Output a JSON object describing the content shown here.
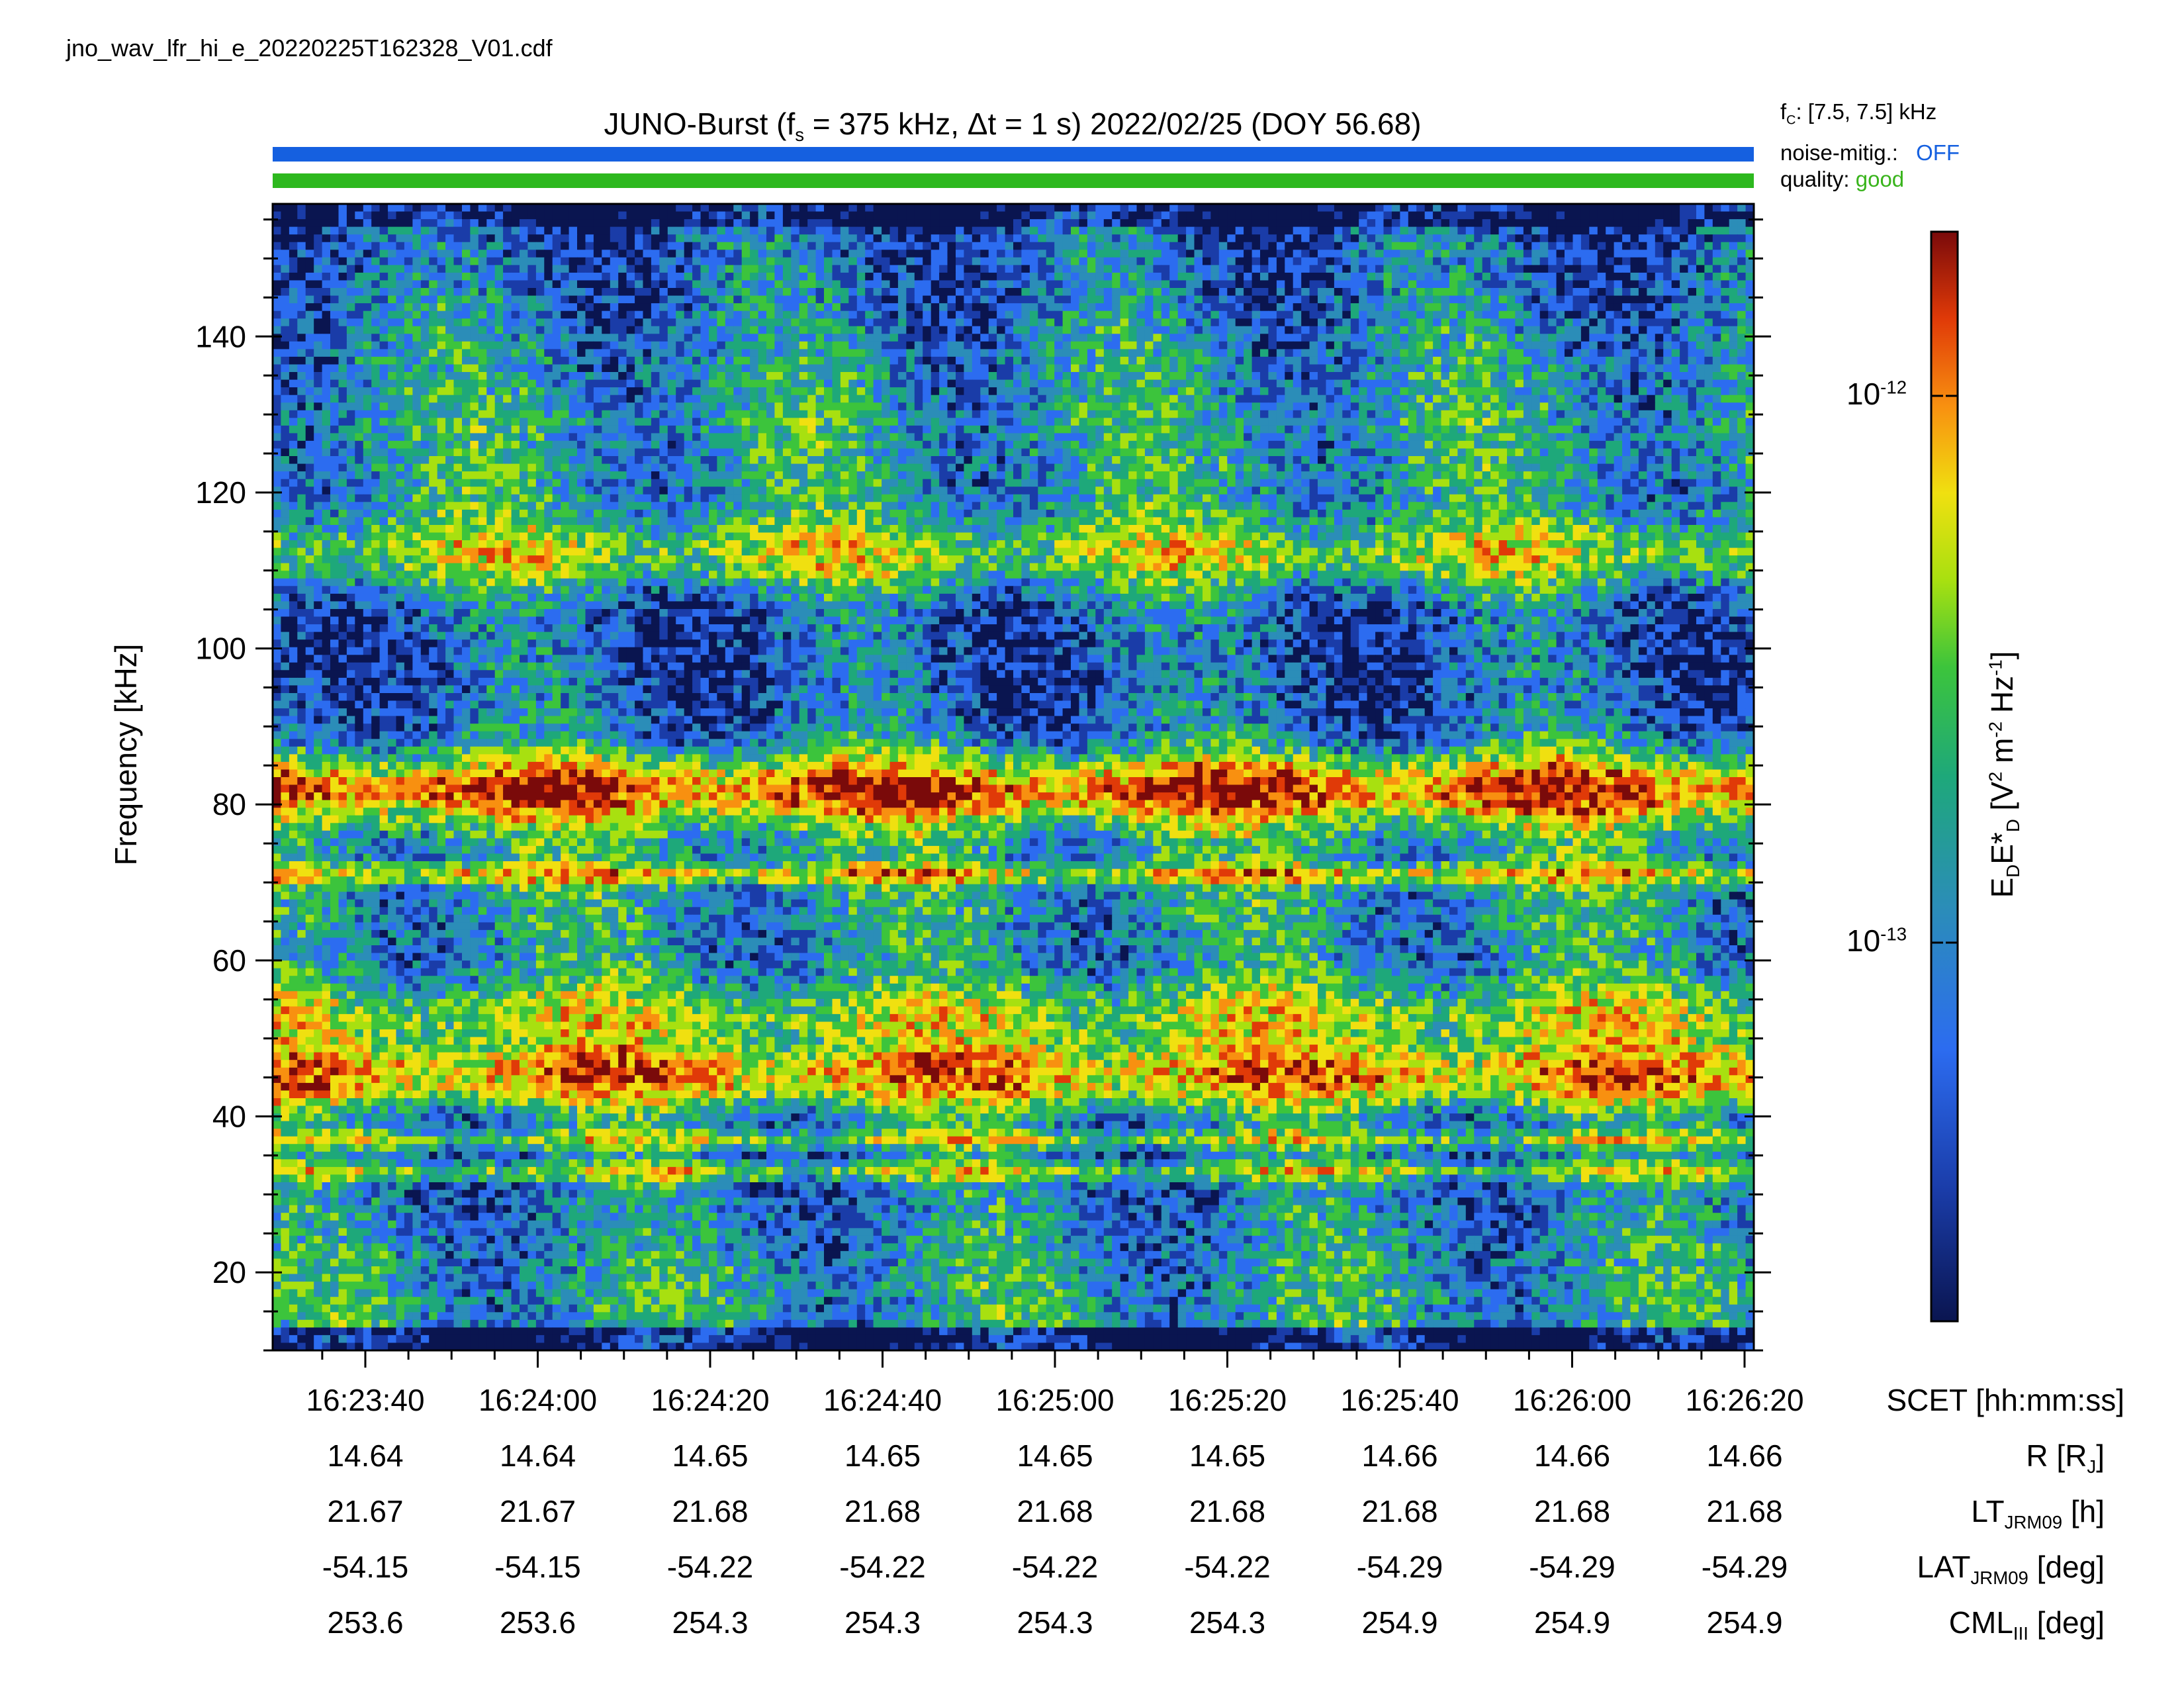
{
  "filename": "jno_wav_lfr_hi_e_20220225T162328_V01.cdf",
  "title": {
    "prefix": "JUNO-Burst (f",
    "sub": "s",
    "rest": " = 375 kHz, Δt = 1 s)  2022/02/25 (DOY 56.68)"
  },
  "side_info": {
    "fc_prefix": "f",
    "fc_sub": "C",
    "fc_value": ": [7.5, 7.5] kHz",
    "noise_label": "noise-mitig.:",
    "noise_value": "OFF",
    "quality_label": "quality:",
    "quality_value": "good"
  },
  "colors": {
    "noise_bar": "#1560e0",
    "quality_bar": "#2db81e",
    "noise_text": "#1560e0",
    "quality_text": "#39b41c"
  },
  "colorbar": {
    "label_main": "E",
    "label_sub1": "D",
    "label_mid": "E*",
    "label_sub2": "D",
    "label_units": " [V",
    "label_sup1": "2",
    "label_units2": " m",
    "label_sup2": "-2",
    "label_units3": " Hz",
    "label_sup3": "-1",
    "label_end": "]",
    "ticks": [
      {
        "base": "10",
        "exp": "-12"
      },
      {
        "base": "10",
        "exp": "-13"
      }
    ]
  },
  "chart_data": {
    "type": "heatmap",
    "ylabel": "Frequency [kHz]",
    "ylim": [
      10,
      157
    ],
    "yticks": [
      20,
      40,
      60,
      80,
      100,
      120,
      140
    ],
    "xlabel": "SCET [hh:mm:ss]",
    "xticks": [
      "16:23:40",
      "16:24:00",
      "16:24:20",
      "16:24:40",
      "16:25:00",
      "16:25:20",
      "16:25:40",
      "16:26:00",
      "16:26:20"
    ],
    "scale": "log",
    "intensity_bands_khz": [
      {
        "center": 45,
        "label": "strong band"
      },
      {
        "center": 82,
        "label": "strong band"
      },
      {
        "center": 53,
        "label": "moderate band"
      },
      {
        "center": 71,
        "label": "narrow line"
      },
      {
        "center": 37,
        "label": "narrow line"
      },
      {
        "center": 33,
        "label": "narrow line"
      },
      {
        "center": 112,
        "label": "moderate band"
      }
    ]
  },
  "ephemeris": {
    "rows": [
      {
        "label_main": "R [R",
        "label_sub": "J",
        "label_end": "]",
        "values": [
          "14.64",
          "14.64",
          "14.65",
          "14.65",
          "14.65",
          "14.65",
          "14.66",
          "14.66",
          "14.66"
        ]
      },
      {
        "label_main": "LT",
        "label_sub": "JRM09",
        "label_end": " [h]",
        "values": [
          "21.67",
          "21.67",
          "21.68",
          "21.68",
          "21.68",
          "21.68",
          "21.68",
          "21.68",
          "21.68"
        ]
      },
      {
        "label_main": "LAT",
        "label_sub": "JRM09",
        "label_end": " [deg]",
        "values": [
          "-54.15",
          "-54.15",
          "-54.22",
          "-54.22",
          "-54.22",
          "-54.22",
          "-54.29",
          "-54.29",
          "-54.29"
        ]
      },
      {
        "label_main": "CML",
        "label_sub": "III",
        "label_end": " [deg]",
        "values": [
          "253.6",
          "253.6",
          "254.3",
          "254.3",
          "254.3",
          "254.3",
          "254.9",
          "254.9",
          "254.9"
        ]
      }
    ]
  }
}
